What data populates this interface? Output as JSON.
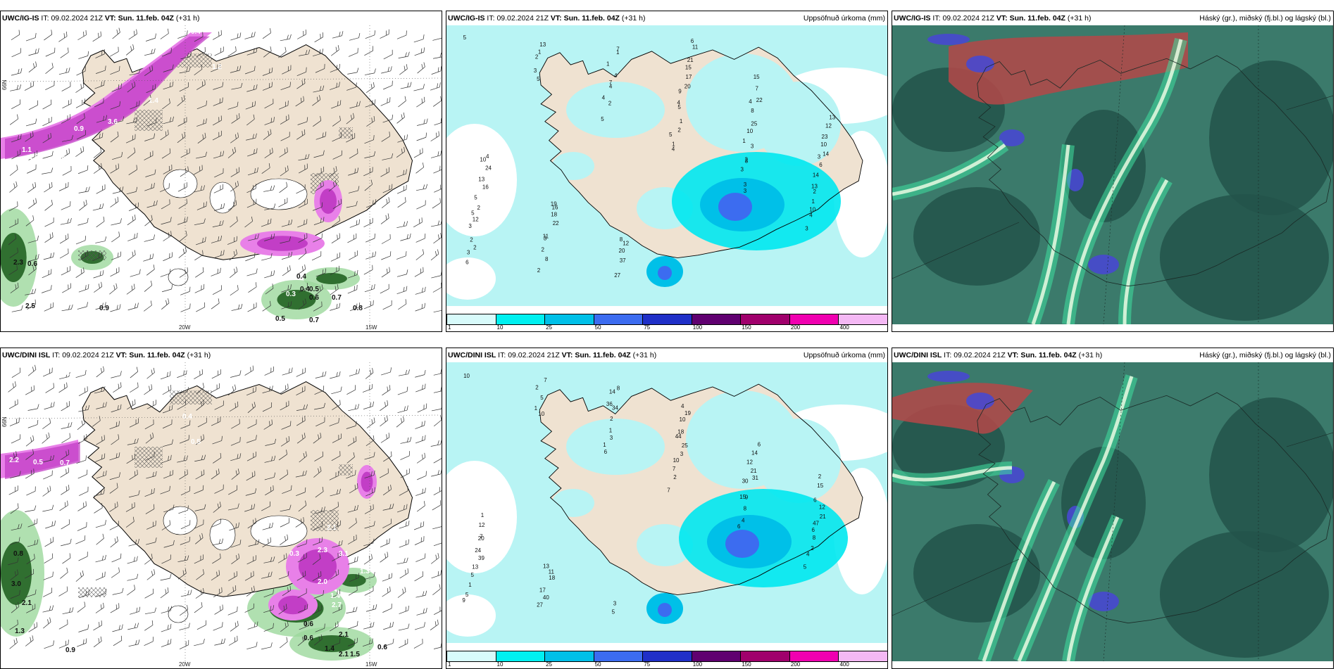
{
  "rows": [
    {
      "panels": [
        {
          "type": "wind",
          "model": "UWC/IG-IS",
          "it_label": "IT:",
          "it": "09.02.2024 21Z",
          "vt_label": "VT:",
          "vt": "Sun. 11.feb. 04Z",
          "lead": "(+31 h)",
          "right": "",
          "axis": {
            "lat": "66N",
            "lon1": "20W",
            "lon2": "15W"
          },
          "labels": [
            "0.4",
            "1.2",
            "1.4",
            "3.6",
            "0.9",
            "1.6",
            "0.6",
            "1.1",
            "0.9",
            "1.4",
            "0.3",
            "0.4",
            "0.5",
            "0.4",
            "0.6",
            "0.7",
            "0.8",
            "0.5",
            "0.7",
            "2.3",
            "0.6",
            "0.9",
            "2.5"
          ]
        },
        {
          "type": "precip",
          "model": "UWC/IG-IS",
          "it_label": "IT:",
          "it": "09.02.2024 21Z",
          "vt_label": "VT:",
          "vt": "Sun. 11.feb. 04Z",
          "lead": "(+31 h)",
          "right": "Uppsöfnuð úrkoma (mm)",
          "labels": [
            "5",
            "5",
            "5",
            "4",
            "3",
            "3",
            "6",
            "3",
            "2",
            "1",
            "3",
            "4",
            "3",
            "2",
            "4",
            "5",
            "3",
            "10",
            "2",
            "1",
            "4",
            "2",
            "3",
            "1",
            "2",
            "13",
            "7",
            "1",
            "2",
            "2",
            "3",
            "2",
            "4",
            "5",
            "3",
            "13",
            "12",
            "8",
            "1",
            "4",
            "1",
            "14",
            "5",
            "2",
            "1",
            "9",
            "10",
            "6",
            "2",
            "3",
            "7",
            "20",
            "25",
            "3",
            "5",
            "11",
            "27",
            "17",
            "8",
            "14",
            "16",
            "22",
            "37",
            "15",
            "4",
            "10",
            "13",
            "18",
            "20",
            "21",
            "22",
            "23",
            "24",
            "16",
            "12",
            "11",
            "7",
            "12",
            "10",
            "19",
            "8",
            "6",
            "15",
            "13",
            "4"
          ]
        },
        {
          "type": "cloud",
          "model": "UWC/IG-IS",
          "it_label": "IT:",
          "it": "09.02.2024 21Z",
          "vt_label": "VT:",
          "vt": "Sun. 11.feb. 04Z",
          "lead": "(+31 h)",
          "right": "Háský (gr.), miðský (fj.bl.) og lágský (bl.)"
        }
      ]
    },
    {
      "panels": [
        {
          "type": "wind",
          "model": "UWC/DINI ISL",
          "it_label": "IT:",
          "it": "09.02.2024 21Z",
          "vt_label": "VT:",
          "vt": "Sun. 11.feb. 04Z",
          "lead": "(+31 h)",
          "right": "",
          "axis": {
            "lat": "66N",
            "lon1": "20W",
            "lon2": "15W"
          },
          "labels": [
            "0.2",
            "0.3",
            "0.5",
            "2.2",
            "0.5",
            "0.7",
            "0.4",
            "0.5",
            "0.8",
            "3.0",
            "2.1",
            "1.3",
            "0.9",
            "0.3",
            "2.1",
            "3.1",
            "2.3",
            "1.3",
            "2.0",
            "1.4",
            "2.7",
            "2.1",
            "0.6",
            "0.6",
            "1.4",
            "2.1",
            "1.5",
            "0.6"
          ]
        },
        {
          "type": "precip",
          "model": "UWC/DINI ISL",
          "it_label": "IT:",
          "it": "09.02.2024 21Z",
          "vt_label": "VT:",
          "vt": "Sun. 11.feb. 04Z",
          "lead": "(+31 h)",
          "right": "Uppsöfnuð úrkoma (mm)",
          "labels": [
            "10",
            "10",
            "6",
            "7",
            "6",
            "5",
            "9",
            "1",
            "1",
            "2",
            "4",
            "4",
            "5",
            "5",
            "3",
            "7",
            "8",
            "2",
            "1",
            "2",
            "1",
            "10",
            "9",
            "8",
            "5",
            "7",
            "2",
            "3",
            "15",
            "6",
            "13",
            "27",
            "34",
            "25",
            "30",
            "47",
            "39",
            "40",
            "36",
            "44",
            "31",
            "21",
            "24",
            "17",
            "14",
            "18",
            "21",
            "12",
            "20",
            "18",
            "8",
            "10",
            "12",
            "6",
            "7",
            "11",
            "5",
            "19",
            "14",
            "15",
            "12",
            "13",
            "3",
            "4",
            "6",
            "2",
            "1"
          ]
        },
        {
          "type": "cloud",
          "model": "UWC/DINI ISL",
          "it_label": "IT:",
          "it": "09.02.2024 21Z",
          "vt_label": "VT:",
          "vt": "Sun. 11.feb. 04Z",
          "lead": "(+31 h)",
          "right": "Háský (gr.), miðský (fj.bl.) og lágský (bl.)"
        }
      ]
    }
  ],
  "colorbar": {
    "labels": [
      "1",
      "10",
      "25",
      "50",
      "75",
      "100",
      "150",
      "200",
      "400"
    ],
    "colors": [
      "#d8fbfb",
      "#00f0f0",
      "#00c0e8",
      "#3c6cf0",
      "#2030c8",
      "#600070",
      "#a0006c",
      "#f000b0",
      "#f4b8f4"
    ]
  },
  "colors": {
    "land": "#efe2d1",
    "coast": "#000000",
    "precip_light": "#b8f4f4",
    "pink": "#c23ec6",
    "pink_light": "#e880e8",
    "green": "#1a5a1a",
    "green_light": "#9cd89c",
    "cloud_teal": "#3b7a6b",
    "cloud_dark": "#23544a",
    "cloud_red": "#b54848",
    "cloud_blue": "#4848d0"
  }
}
